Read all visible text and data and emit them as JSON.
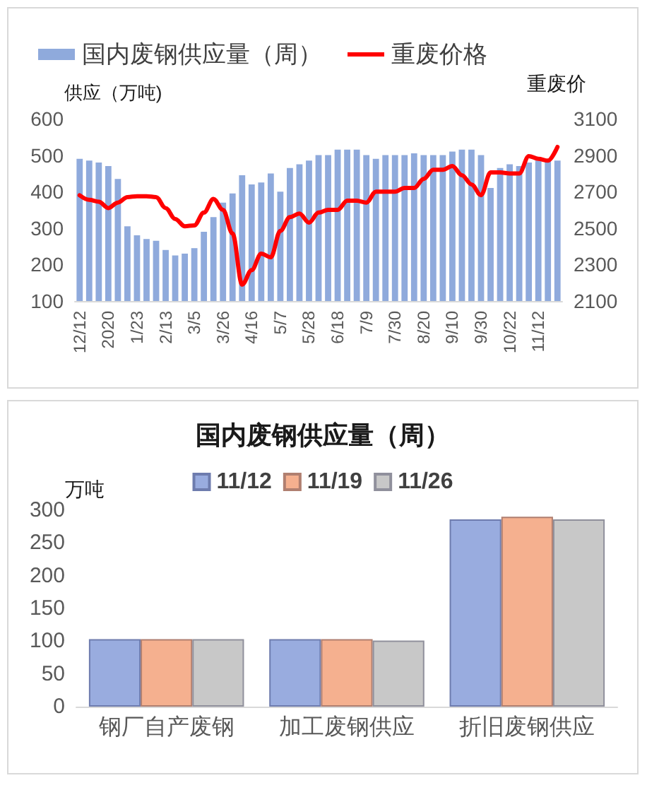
{
  "chart_data": [
    {
      "type": "bar",
      "categories": [
        "12/12",
        null,
        null,
        "2020",
        null,
        null,
        "1/23",
        null,
        null,
        "2/13",
        null,
        null,
        "3/5",
        null,
        null,
        "3/26",
        null,
        null,
        "4/16",
        null,
        null,
        "5/7",
        null,
        null,
        "5/28",
        null,
        null,
        "6/18",
        null,
        null,
        "7/9",
        null,
        null,
        "7/30",
        null,
        null,
        "8/20",
        null,
        null,
        "9/10",
        null,
        null,
        "9/30",
        null,
        null,
        "10/22",
        null,
        null,
        "11/12",
        null,
        null
      ],
      "series": [
        {
          "name": "国内废钢供应量（周）",
          "color": "#8faadc",
          "values": [
            490,
            485,
            480,
            470,
            435,
            305,
            280,
            270,
            265,
            240,
            225,
            230,
            245,
            290,
            330,
            370,
            395,
            445,
            420,
            425,
            450,
            400,
            465,
            475,
            485,
            500,
            500,
            515,
            515,
            515,
            500,
            490,
            500,
            500,
            500,
            505,
            500,
            500,
            500,
            510,
            515,
            515,
            500,
            410,
            465,
            475,
            470,
            480,
            485,
            485,
            485
          ]
        },
        {
          "name": "重废价格",
          "type": "line",
          "axis": "y2",
          "color": "#ff0000",
          "values": [
            2680,
            2655,
            2645,
            2610,
            2640,
            2670,
            2675,
            2675,
            2670,
            2610,
            2550,
            2510,
            2515,
            2585,
            2660,
            2600,
            2470,
            2190,
            2270,
            2360,
            2340,
            2485,
            2560,
            2580,
            2530,
            2585,
            2600,
            2600,
            2650,
            2650,
            2640,
            2700,
            2700,
            2700,
            2720,
            2720,
            2770,
            2820,
            2820,
            2840,
            2790,
            2740,
            2680,
            2805,
            2805,
            2800,
            2800,
            2895,
            2880,
            2870,
            2945
          ]
        }
      ],
      "ylabel": "供应（万吨)",
      "y2label": "重废价",
      "ylim": [
        100,
        600
      ],
      "yticks": [
        100,
        200,
        300,
        400,
        500,
        600
      ],
      "y2lim": [
        2100,
        3100
      ],
      "y2ticks": [
        2100,
        2300,
        2500,
        2700,
        2900,
        3100
      ],
      "legend": "top",
      "grid": false,
      "marker": "none"
    },
    {
      "type": "bar",
      "title": "国内废钢供应量（周）",
      "ylabel": "万吨",
      "categories": [
        "钢厂自产废钢",
        "加工废钢供应",
        "折旧废钢供应"
      ],
      "series": [
        {
          "name": "11/12",
          "color": "#99acdf",
          "values": [
            103,
            103,
            286
          ]
        },
        {
          "name": "11/19",
          "color": "#f5b08f",
          "values": [
            103,
            103,
            290
          ]
        },
        {
          "name": "11/26",
          "color": "#c8c8c8",
          "values": [
            103,
            101,
            286
          ]
        }
      ],
      "ylim": [
        0,
        300
      ],
      "yticks": [
        0,
        50,
        100,
        150,
        200,
        250,
        300
      ],
      "legend": "top",
      "grid": false
    }
  ]
}
